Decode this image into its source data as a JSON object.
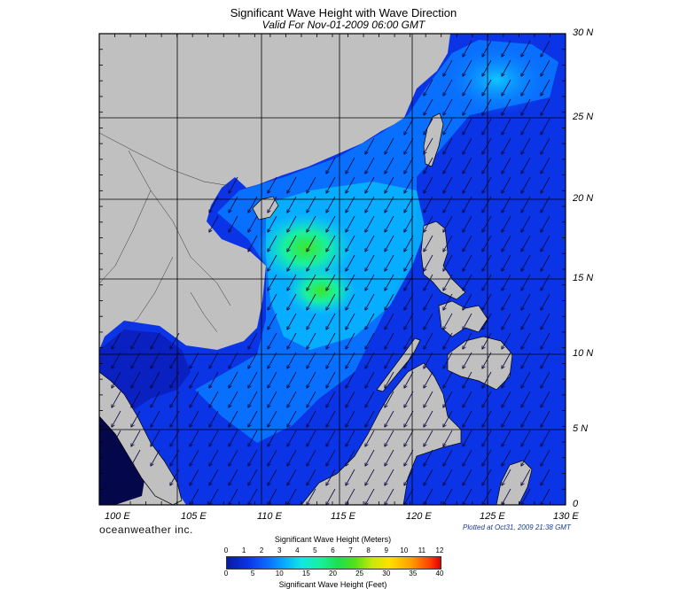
{
  "title": "Significant Wave Height with Wave Direction",
  "subtitle": "Valid For Nov-01-2009 06:00 GMT",
  "lat_labels": [
    "30 N",
    "25 N",
    "20 N",
    "15 N",
    "10 N",
    "5 N",
    "0"
  ],
  "lon_labels": [
    "100 E",
    "105 E",
    "110 E",
    "115 E",
    "120 E",
    "125 E",
    "130 E"
  ],
  "brand": "oceanweather inc.",
  "plotted": "Plotted at Oct31, 2009 21:38 GMT",
  "legend": {
    "title_meters": "Significant Wave Height (Meters)",
    "title_feet": "Significant Wave Height (Feet)",
    "meters_ticks": [
      "0",
      "1",
      "2",
      "3",
      "4",
      "5",
      "6",
      "7",
      "8",
      "9",
      "10",
      "11",
      "12"
    ],
    "feet_ticks": [
      "0",
      "5",
      "10",
      "15",
      "20",
      "25",
      "30",
      "35",
      "40"
    ]
  },
  "colors": {
    "land": "#c0c0c0",
    "sea_low": "#0b34e6",
    "sea_mid": "#08b4ff",
    "sea_high": "#2ee63a",
    "grid": "#000000"
  },
  "map_extent": {
    "lon": [
      100,
      130
    ],
    "lat": [
      0,
      30
    ]
  },
  "wave_direction": "southwest"
}
